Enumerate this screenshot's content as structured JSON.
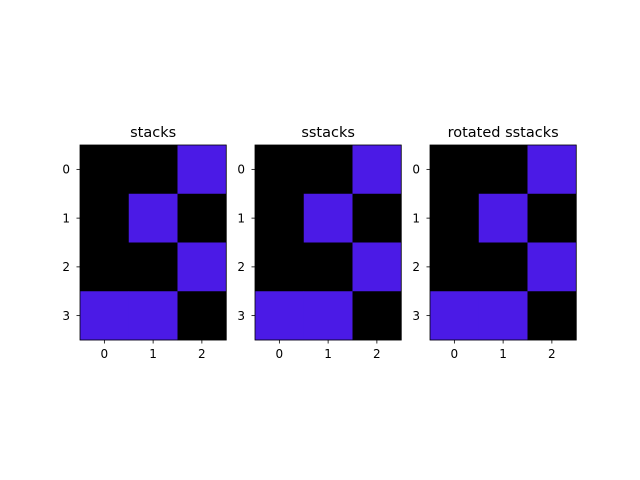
{
  "chart_data": [
    {
      "type": "heatmap",
      "title": "stacks",
      "x_ticks": [
        "0",
        "1",
        "2"
      ],
      "y_ticks": [
        "0",
        "1",
        "2",
        "3"
      ],
      "values": [
        [
          0,
          0,
          1
        ],
        [
          0,
          1,
          0
        ],
        [
          0,
          0,
          1
        ],
        [
          1,
          1,
          0
        ]
      ],
      "colors": {
        "0": "#000000",
        "1": "#4b1ae6"
      },
      "grid": false
    },
    {
      "type": "heatmap",
      "title": "sstacks",
      "x_ticks": [
        "0",
        "1",
        "2"
      ],
      "y_ticks": [
        "0",
        "1",
        "2",
        "3"
      ],
      "values": [
        [
          0,
          0,
          1
        ],
        [
          0,
          1,
          0
        ],
        [
          0,
          0,
          1
        ],
        [
          1,
          1,
          0
        ]
      ],
      "colors": {
        "0": "#000000",
        "1": "#4b1ae6"
      },
      "grid": false
    },
    {
      "type": "heatmap",
      "title": "rotated sstacks",
      "x_ticks": [
        "0",
        "1",
        "2"
      ],
      "y_ticks": [
        "0",
        "1",
        "2",
        "3"
      ],
      "values": [
        [
          0,
          0,
          1
        ],
        [
          0,
          1,
          0
        ],
        [
          0,
          0,
          1
        ],
        [
          1,
          1,
          0
        ]
      ],
      "colors": {
        "0": "#000000",
        "1": "#4b1ae6"
      },
      "grid": false
    }
  ]
}
